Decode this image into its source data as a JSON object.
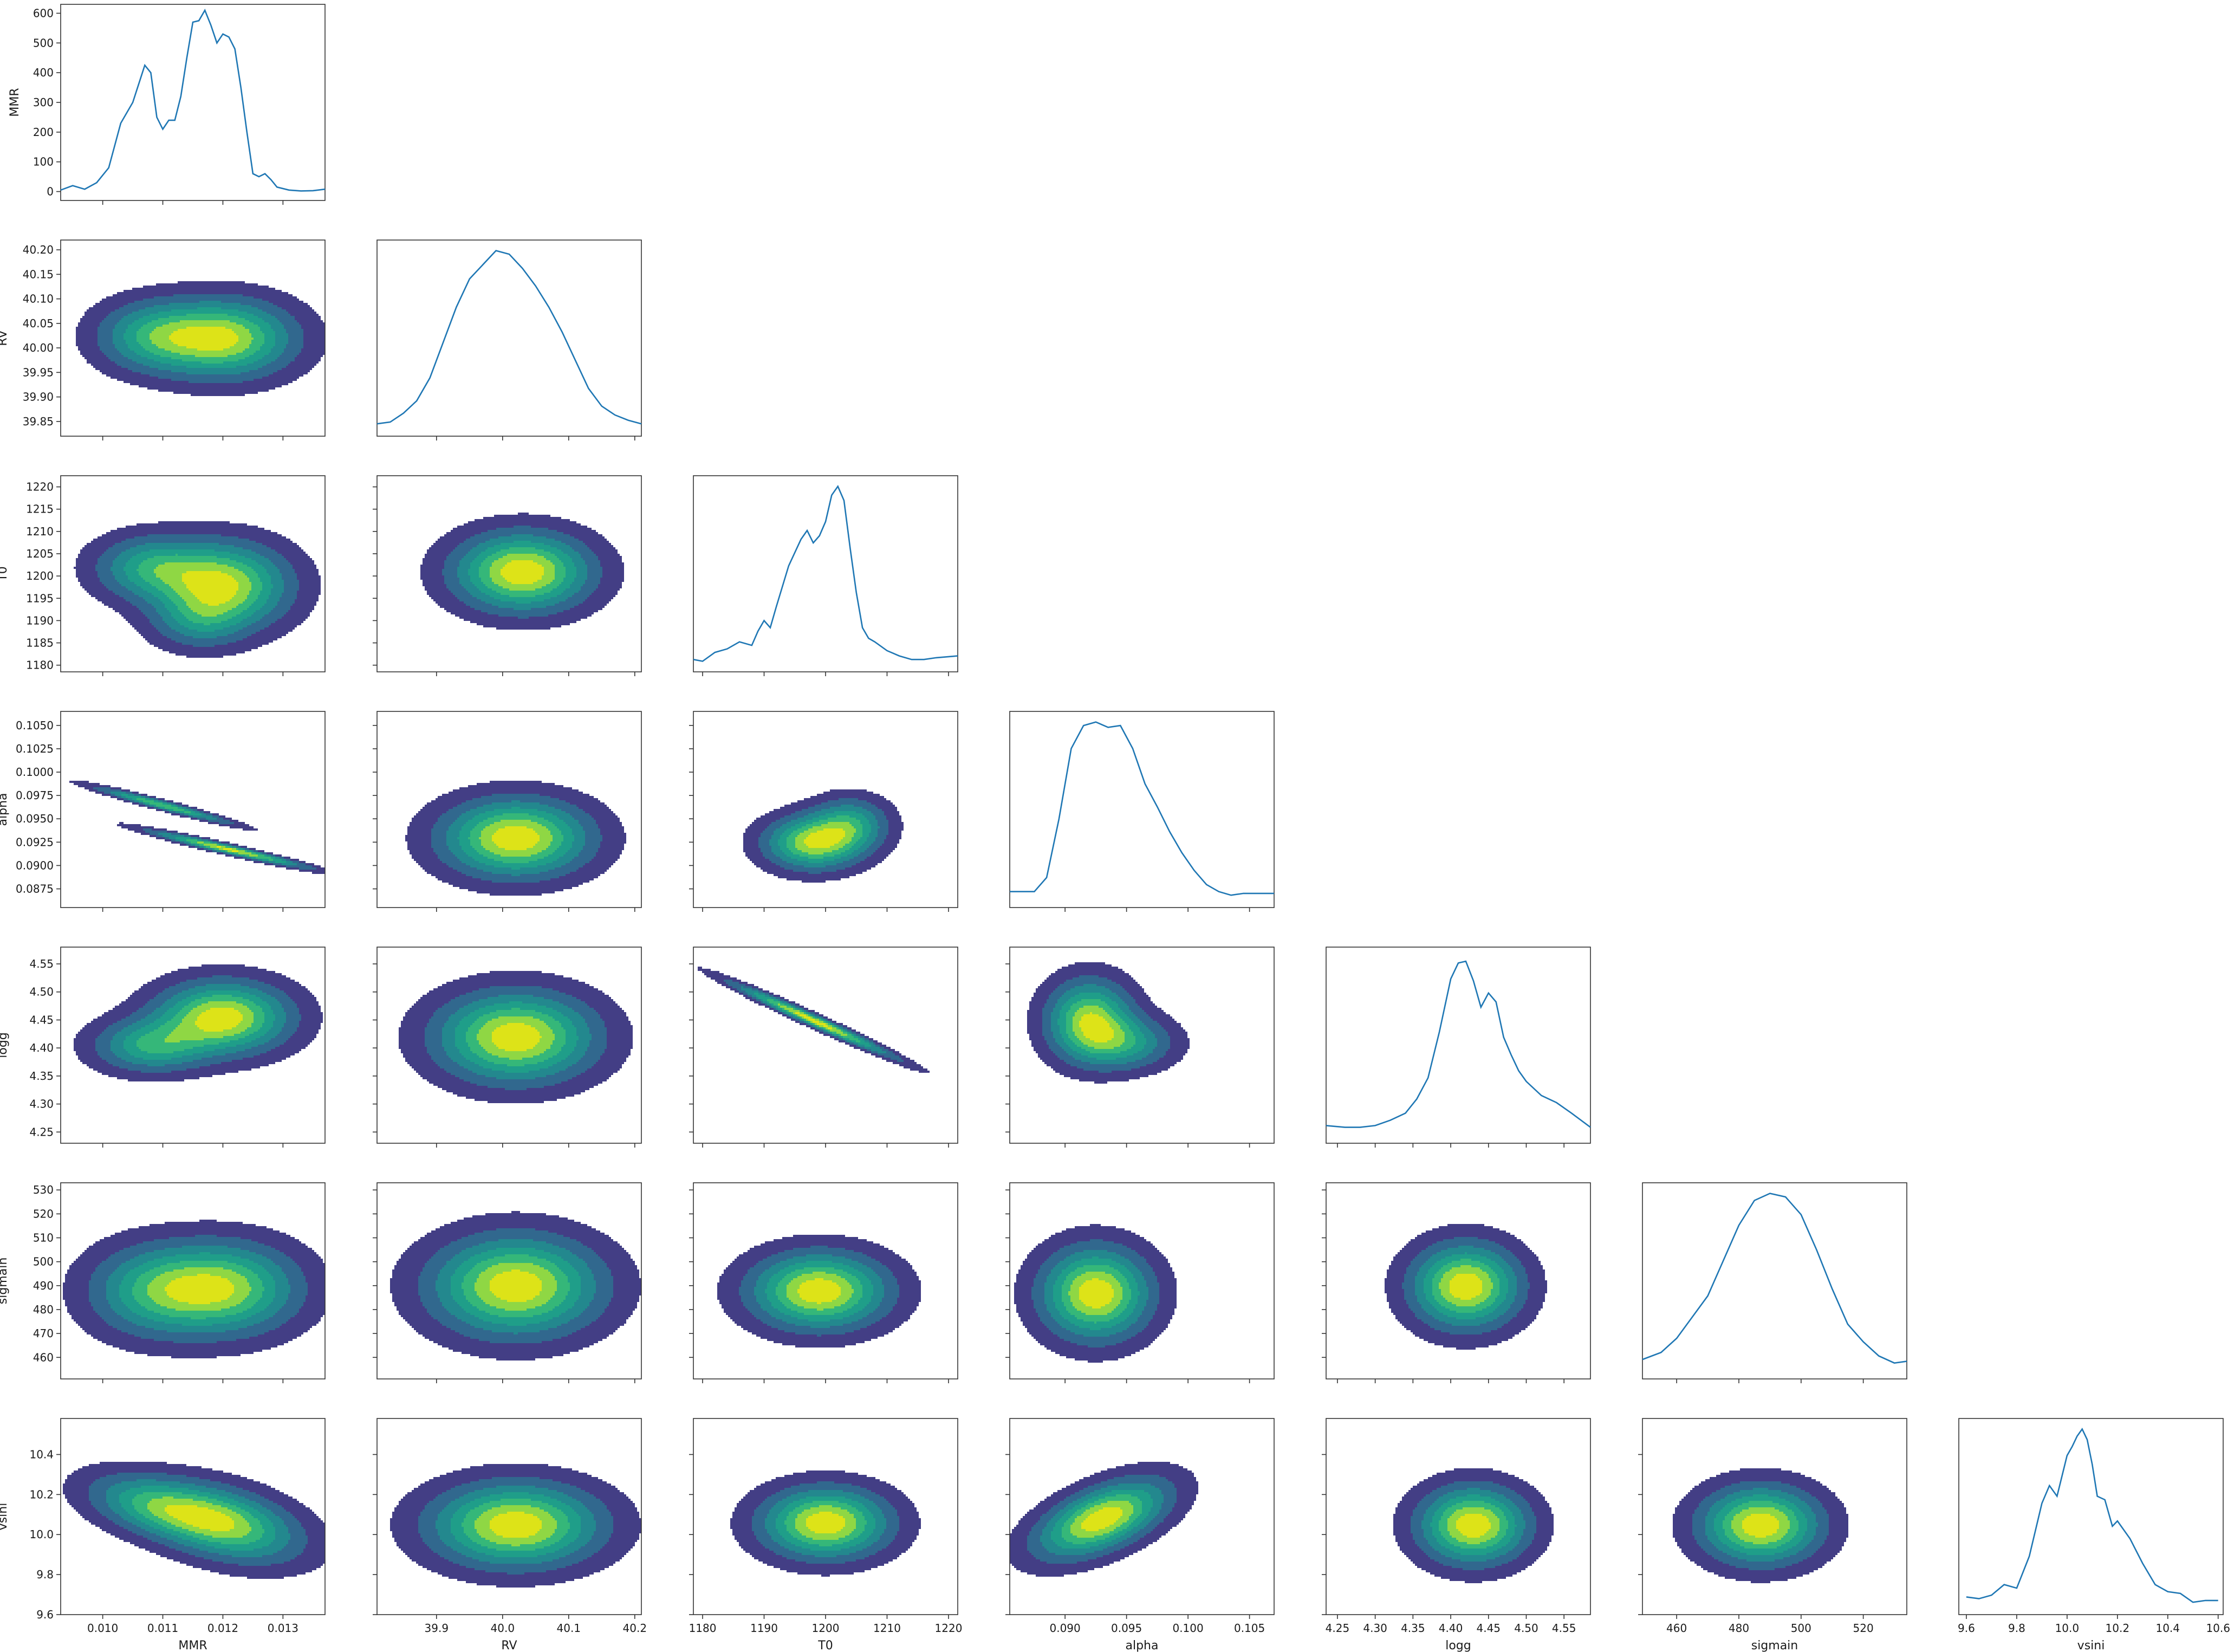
{
  "figure": {
    "type": "corner-plot"
  },
  "colors": {
    "line": "#1f77b4",
    "contour_levels": [
      "#ffffff",
      "#433e85",
      "#31688e",
      "#23888e",
      "#1f9e89",
      "#35b779",
      "#8fd744",
      "#dde318"
    ],
    "contour_edge": "#8a8a8a",
    "scatter_outline": "#555555"
  },
  "chart_data": {
    "type": "corner",
    "parameters": [
      {
        "name": "MMR",
        "xlim": [
          0.0093,
          0.0137
        ],
        "xticks": [
          0.01,
          0.011,
          0.012,
          0.013
        ],
        "xtick_labels": [
          "0.010",
          "0.011",
          "0.012",
          "0.013"
        ],
        "yticks": [
          0.01,
          0.011,
          0.012,
          0.013
        ],
        "ytick_labels": [],
        "dens_ylim": [
          -30,
          630
        ],
        "dens_yticks": [
          0,
          100,
          200,
          300,
          400,
          500,
          600
        ],
        "dens_ytick_labels": [
          "0",
          "100",
          "200",
          "300",
          "400",
          "500",
          "600"
        ]
      },
      {
        "name": "RV",
        "xlim": [
          39.81,
          40.21
        ],
        "xticks": [
          39.9,
          40.0,
          40.1,
          40.2
        ],
        "xtick_labels": [
          "39.9",
          "40.0",
          "40.1",
          "40.2"
        ],
        "ylim": [
          39.82,
          40.22
        ],
        "yticks": [
          39.85,
          39.9,
          39.95,
          40.0,
          40.05,
          40.1,
          40.15,
          40.2
        ],
        "ytick_labels": [
          "39.85",
          "39.90",
          "39.95",
          "40.00",
          "40.05",
          "40.10",
          "40.15",
          "40.20"
        ]
      },
      {
        "name": "T0",
        "xlim": [
          1178.5,
          1221.5
        ],
        "xticks": [
          1180,
          1190,
          1200,
          1210,
          1220
        ],
        "xtick_labels": [
          "1180",
          "1190",
          "1200",
          "1210",
          "1220"
        ],
        "ylim": [
          1178.5,
          1222.5
        ],
        "yticks": [
          1180,
          1185,
          1190,
          1195,
          1200,
          1205,
          1210,
          1215,
          1220
        ],
        "ytick_labels": [
          "1180",
          "1185",
          "1190",
          "1195",
          "1200",
          "1205",
          "1210",
          "1215",
          "1220"
        ]
      },
      {
        "name": "alpha",
        "xlim": [
          0.0855,
          0.107
        ],
        "xticks": [
          0.09,
          0.095,
          0.1,
          0.105
        ],
        "xtick_labels": [
          "0.090",
          "0.095",
          "0.100",
          "0.105"
        ],
        "ylim": [
          0.0855,
          0.1065
        ],
        "yticks": [
          0.0875,
          0.09,
          0.0925,
          0.095,
          0.0975,
          0.1,
          0.1025,
          0.105
        ],
        "ytick_labels": [
          "0.0875",
          "0.0900",
          "0.0925",
          "0.0950",
          "0.0975",
          "0.1000",
          "0.1025",
          "0.1050"
        ]
      },
      {
        "name": "logg",
        "xlim": [
          4.235,
          4.585
        ],
        "xticks": [
          4.25,
          4.3,
          4.35,
          4.4,
          4.45,
          4.5,
          4.55
        ],
        "xtick_labels": [
          "4.25",
          "4.30",
          "4.35",
          "4.40",
          "4.45",
          "4.50",
          "4.55"
        ],
        "ylim": [
          4.23,
          4.58
        ],
        "yticks": [
          4.25,
          4.3,
          4.35,
          4.4,
          4.45,
          4.5,
          4.55
        ],
        "ytick_labels": [
          "4.25",
          "4.30",
          "4.35",
          "4.40",
          "4.45",
          "4.50",
          "4.55"
        ]
      },
      {
        "name": "sigmain",
        "xlim": [
          449,
          534
        ],
        "xticks": [
          460,
          480,
          500,
          520
        ],
        "xtick_labels": [
          "460",
          "480",
          "500",
          "520"
        ],
        "ylim": [
          451,
          533
        ],
        "yticks": [
          460,
          470,
          480,
          490,
          500,
          510,
          520,
          530
        ],
        "ytick_labels": [
          "460",
          "470",
          "480",
          "490",
          "500",
          "510",
          "520",
          "530"
        ]
      },
      {
        "name": "vsini",
        "xlim": [
          9.57,
          10.62
        ],
        "xticks": [
          9.6,
          9.8,
          10.0,
          10.2,
          10.4,
          10.6
        ],
        "xtick_labels": [
          "9.6",
          "9.8",
          "10.0",
          "10.2",
          "10.4",
          "10.6"
        ],
        "ylim": [
          9.6,
          10.58
        ],
        "yticks": [
          9.6,
          9.8,
          10.0,
          10.2,
          10.4
        ],
        "ytick_labels": [
          "9.6",
          "9.8",
          "10.0",
          "10.2",
          "10.4"
        ]
      }
    ],
    "diagonal": [
      {
        "x": [
          0.0093,
          0.0095,
          0.0097,
          0.0099,
          0.0101,
          0.0103,
          0.0105,
          0.0107,
          0.0108,
          0.0109,
          0.011,
          0.0111,
          0.0112,
          0.0113,
          0.0114,
          0.0115,
          0.0116,
          0.0117,
          0.0118,
          0.0119,
          0.012,
          0.0121,
          0.0122,
          0.0123,
          0.0124,
          0.0125,
          0.0126,
          0.0127,
          0.0128,
          0.0129,
          0.0131,
          0.0133,
          0.0135,
          0.0137
        ],
        "y": [
          5,
          20,
          8,
          30,
          80,
          230,
          300,
          425,
          400,
          250,
          210,
          240,
          240,
          320,
          450,
          570,
          575,
          610,
          560,
          500,
          530,
          520,
          480,
          350,
          200,
          60,
          50,
          60,
          40,
          15,
          5,
          2,
          3,
          8
        ]
      },
      {
        "x": [
          39.81,
          39.83,
          39.85,
          39.87,
          39.89,
          39.91,
          39.93,
          39.95,
          39.97,
          39.99,
          40.01,
          40.03,
          40.05,
          40.07,
          40.09,
          40.11,
          40.13,
          40.15,
          40.17,
          40.19,
          40.21
        ],
        "y": [
          0.02,
          0.03,
          0.08,
          0.15,
          0.28,
          0.48,
          0.68,
          0.84,
          0.92,
          1.0,
          0.98,
          0.9,
          0.8,
          0.68,
          0.54,
          0.38,
          0.22,
          0.12,
          0.07,
          0.04,
          0.02
        ]
      },
      {
        "x": [
          1178.5,
          1180,
          1182,
          1184,
          1186,
          1188,
          1189,
          1190,
          1191,
          1192,
          1194,
          1196,
          1197,
          1198,
          1199,
          1200,
          1201,
          1202,
          1203,
          1204,
          1205,
          1206,
          1207,
          1208,
          1210,
          1212,
          1214,
          1216,
          1218,
          1221.5
        ],
        "y": [
          0.02,
          0.01,
          0.06,
          0.08,
          0.12,
          0.1,
          0.18,
          0.24,
          0.2,
          0.32,
          0.55,
          0.7,
          0.75,
          0.68,
          0.72,
          0.8,
          0.95,
          1.0,
          0.92,
          0.65,
          0.4,
          0.2,
          0.14,
          0.12,
          0.07,
          0.04,
          0.02,
          0.02,
          0.03,
          0.04
        ]
      },
      {
        "x": [
          0.0855,
          0.0875,
          0.0885,
          0.0895,
          0.0905,
          0.0915,
          0.0925,
          0.0935,
          0.0945,
          0.0955,
          0.0965,
          0.0975,
          0.0985,
          0.0995,
          0.1005,
          0.1015,
          0.1025,
          0.1035,
          0.1045,
          0.1055,
          0.107
        ],
        "y": [
          0.04,
          0.04,
          0.12,
          0.45,
          0.85,
          0.98,
          1.0,
          0.97,
          0.98,
          0.85,
          0.65,
          0.52,
          0.38,
          0.26,
          0.16,
          0.08,
          0.04,
          0.02,
          0.03,
          0.03,
          0.03
        ]
      },
      {
        "x": [
          4.235,
          4.26,
          4.28,
          4.3,
          4.32,
          4.34,
          4.355,
          4.37,
          4.385,
          4.4,
          4.41,
          4.42,
          4.43,
          4.44,
          4.45,
          4.46,
          4.47,
          4.48,
          4.49,
          4.5,
          4.52,
          4.54,
          4.56,
          4.585
        ],
        "y": [
          0.05,
          0.04,
          0.04,
          0.05,
          0.08,
          0.12,
          0.2,
          0.32,
          0.58,
          0.88,
          0.97,
          0.98,
          0.87,
          0.72,
          0.8,
          0.75,
          0.55,
          0.45,
          0.36,
          0.3,
          0.22,
          0.18,
          0.12,
          0.04
        ]
      },
      {
        "x": [
          449,
          455,
          460,
          465,
          470,
          475,
          480,
          485,
          490,
          495,
          500,
          505,
          510,
          515,
          520,
          525,
          530,
          534
        ],
        "y": [
          0.06,
          0.1,
          0.18,
          0.3,
          0.42,
          0.62,
          0.82,
          0.96,
          1.0,
          0.98,
          0.88,
          0.68,
          0.46,
          0.26,
          0.16,
          0.08,
          0.04,
          0.05
        ]
      },
      {
        "x": [
          9.6,
          9.65,
          9.7,
          9.75,
          9.8,
          9.85,
          9.9,
          9.93,
          9.96,
          10.0,
          10.02,
          10.04,
          10.06,
          10.08,
          10.1,
          10.12,
          10.15,
          10.18,
          10.2,
          10.25,
          10.3,
          10.35,
          10.4,
          10.45,
          10.5,
          10.55,
          10.6
        ],
        "y": [
          0.05,
          0.04,
          0.06,
          0.12,
          0.1,
          0.28,
          0.58,
          0.68,
          0.62,
          0.85,
          0.9,
          0.96,
          1.0,
          0.94,
          0.8,
          0.62,
          0.6,
          0.45,
          0.48,
          0.38,
          0.24,
          0.12,
          0.08,
          0.07,
          0.02,
          0.03,
          0.03
        ]
      }
    ],
    "pairs": [
      {
        "row": 1,
        "col": 0,
        "peaks": [
          [
            0.0108,
            40.025,
            0.55,
            0.0006,
            0.045
          ],
          [
            0.012,
            40.02,
            1.0,
            0.00075,
            0.05
          ]
        ],
        "tilt": 0
      },
      {
        "row": 2,
        "col": 0,
        "peaks": [
          [
            0.0108,
            1202,
            0.6,
            0.0006,
            4.5
          ],
          [
            0.012,
            1198,
            1.0,
            0.0007,
            6.0
          ],
          [
            0.0116,
            1190,
            0.35,
            0.0005,
            4
          ]
        ],
        "tilt": 0
      },
      {
        "row": 2,
        "col": 1,
        "peaks": [
          [
            40.03,
            1201,
            1.0,
            0.065,
            5.5
          ]
        ],
        "tilt": 0
      },
      {
        "row": 3,
        "col": 0,
        "peaks": [
          [
            0.011,
            0.0965,
            0.8,
            0.0007,
            0.0012
          ],
          [
            0.0121,
            0.0918,
            1.0,
            0.0008,
            0.0012
          ]
        ],
        "tilt": -0.97
      },
      {
        "row": 3,
        "col": 1,
        "peaks": [
          [
            40.02,
            0.093,
            1.0,
            0.07,
            0.0026
          ]
        ],
        "tilt": 0
      },
      {
        "row": 3,
        "col": 2,
        "peaks": [
          [
            1198,
            0.0925,
            1.0,
            5,
            0.0018
          ],
          [
            1204,
            0.0945,
            0.6,
            4,
            0.0018
          ]
        ],
        "tilt": 0
      },
      {
        "row": 4,
        "col": 0,
        "peaks": [
          [
            0.0108,
            4.405,
            0.6,
            0.0006,
            0.03
          ],
          [
            0.012,
            4.455,
            1.0,
            0.0007,
            0.04
          ]
        ],
        "tilt": 0
      },
      {
        "row": 4,
        "col": 1,
        "peaks": [
          [
            40.02,
            4.42,
            1.0,
            0.075,
            0.05
          ]
        ],
        "tilt": 0
      },
      {
        "row": 4,
        "col": 2,
        "peaks": [
          [
            1198,
            4.45,
            1.0,
            8,
            0.04
          ]
        ],
        "tilt": -0.985
      },
      {
        "row": 4,
        "col": 3,
        "peaks": [
          [
            0.092,
            4.45,
            1.0,
            0.0022,
            0.045
          ],
          [
            0.095,
            4.41,
            0.55,
            0.0025,
            0.03
          ]
        ],
        "tilt": 0
      },
      {
        "row": 5,
        "col": 0,
        "peaks": [
          [
            0.0108,
            488,
            0.6,
            0.0007,
            12
          ],
          [
            0.012,
            489,
            1.0,
            0.0008,
            12
          ]
        ],
        "tilt": 0
      },
      {
        "row": 5,
        "col": 1,
        "peaks": [
          [
            40.02,
            490,
            1.0,
            0.08,
            13
          ]
        ],
        "tilt": 0
      },
      {
        "row": 5,
        "col": 2,
        "peaks": [
          [
            1199,
            488,
            1.0,
            7,
            10
          ]
        ],
        "tilt": 0
      },
      {
        "row": 5,
        "col": 3,
        "peaks": [
          [
            0.0925,
            487,
            1.0,
            0.0028,
            12
          ]
        ],
        "tilt": 0
      },
      {
        "row": 5,
        "col": 4,
        "peaks": [
          [
            4.42,
            490,
            1.0,
            0.045,
            11
          ]
        ],
        "tilt": 0
      },
      {
        "row": 6,
        "col": 0,
        "peaks": [
          [
            0.0108,
            10.15,
            0.6,
            0.0007,
            0.1
          ],
          [
            0.012,
            10.06,
            1.0,
            0.0008,
            0.12
          ]
        ],
        "tilt": -0.4
      },
      {
        "row": 6,
        "col": 1,
        "peaks": [
          [
            40.02,
            10.05,
            1.0,
            0.08,
            0.13
          ]
        ],
        "tilt": 0
      },
      {
        "row": 6,
        "col": 2,
        "peaks": [
          [
            1200,
            10.06,
            1.0,
            6.5,
            0.11
          ]
        ],
        "tilt": 0
      },
      {
        "row": 6,
        "col": 3,
        "peaks": [
          [
            0.093,
            10.08,
            1.0,
            0.0033,
            0.12
          ]
        ],
        "tilt": 0.55
      },
      {
        "row": 6,
        "col": 4,
        "peaks": [
          [
            4.43,
            10.05,
            1.0,
            0.045,
            0.12
          ]
        ],
        "tilt": 0
      },
      {
        "row": 6,
        "col": 5,
        "peaks": [
          [
            487,
            10.05,
            1.0,
            12,
            0.12
          ]
        ],
        "tilt": 0
      }
    ]
  }
}
